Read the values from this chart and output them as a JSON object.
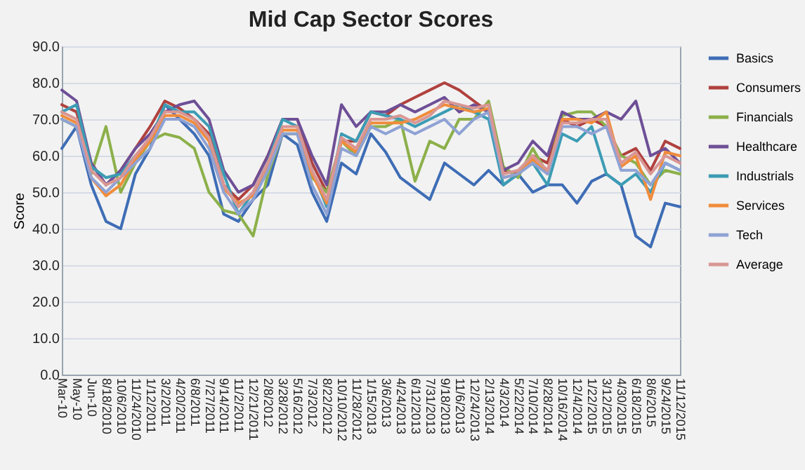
{
  "chart_data": {
    "type": "line",
    "title": "Mid Cap Sector Scores",
    "ylabel": "Score",
    "categories": [
      "Mar-10",
      "May-10",
      "Jun-10",
      "8/18/2010",
      "10/6/2010",
      "11/24/2010",
      "1/12/2011",
      "3/2/2011",
      "4/20/2011",
      "6/8/2011",
      "7/27/2011",
      "9/14/2011",
      "11/2/2011",
      "12/21/2011",
      "2/8/2012",
      "3/28/2012",
      "5/16/2012",
      "7/3/2012",
      "8/22/2012",
      "10/10/2012",
      "11/28/2012",
      "1/15/2013",
      "3/6/2013",
      "4/24/2013",
      "6/12/2013",
      "7/31/2013",
      "9/18/2013",
      "11/6/2013",
      "12/24/2013",
      "2/13/2014",
      "4/3/2014",
      "5/22/2014",
      "7/10/2014",
      "8/28/2014",
      "10/16/2014",
      "12/4/2014",
      "1/22/2015",
      "3/12/2015",
      "4/30/2015",
      "6/18/2015",
      "8/6/2015",
      "9/24/2015",
      "11/12/2015"
    ],
    "series": [
      {
        "name": "Basics",
        "color": "#3e6db5",
        "values": [
          62,
          68,
          52,
          42,
          40,
          55,
          62,
          74,
          70,
          66,
          60,
          44,
          42,
          48,
          52,
          66,
          63,
          50,
          42,
          58,
          55,
          66,
          61,
          54,
          51,
          48,
          58,
          55,
          52,
          56,
          52,
          55,
          50,
          52,
          52,
          47,
          53,
          55,
          52,
          38,
          35,
          47,
          46
        ]
      },
      {
        "name": "Consumers",
        "color": "#b0413e",
        "values": [
          74,
          72,
          58,
          52,
          56,
          62,
          68,
          75,
          73,
          70,
          66,
          52,
          48,
          52,
          60,
          70,
          70,
          58,
          50,
          64,
          64,
          72,
          71,
          74,
          76,
          78,
          80,
          78,
          75,
          72,
          56,
          55,
          60,
          58,
          70,
          68,
          70,
          68,
          60,
          62,
          56,
          64,
          62
        ]
      },
      {
        "name": "Financials",
        "color": "#8cb04a",
        "values": [
          70,
          68,
          55,
          68,
          50,
          58,
          64,
          66,
          65,
          62,
          50,
          45,
          44,
          38,
          55,
          66,
          66,
          54,
          50,
          64,
          60,
          68,
          68,
          70,
          53,
          64,
          62,
          70,
          70,
          75,
          57,
          54,
          62,
          55,
          71,
          72,
          72,
          68,
          60,
          58,
          52,
          56,
          55
        ]
      },
      {
        "name": "Healthcare",
        "color": "#6e4f96",
        "values": [
          78,
          75,
          58,
          52,
          56,
          62,
          66,
          72,
          74,
          75,
          70,
          56,
          50,
          52,
          60,
          70,
          70,
          60,
          52,
          74,
          68,
          72,
          72,
          74,
          72,
          74,
          76,
          72,
          74,
          72,
          56,
          58,
          64,
          60,
          72,
          70,
          70,
          72,
          70,
          75,
          60,
          62,
          58
        ]
      },
      {
        "name": "Industrials",
        "color": "#3c9cb4",
        "values": [
          72,
          74,
          57,
          54,
          55,
          60,
          64,
          74,
          72,
          72,
          68,
          55,
          44,
          50,
          58,
          70,
          68,
          56,
          46,
          66,
          64,
          72,
          71,
          70,
          68,
          70,
          72,
          74,
          72,
          70,
          52,
          55,
          58,
          52,
          66,
          64,
          68,
          55,
          52,
          55,
          50,
          58,
          56
        ]
      },
      {
        "name": "Services",
        "color": "#f08c3c",
        "values": [
          71,
          69,
          54,
          49,
          52,
          59,
          64,
          71,
          71,
          69,
          64,
          51,
          47,
          49,
          57,
          67,
          67,
          55,
          47,
          64,
          61,
          69,
          69,
          69,
          70,
          72,
          74,
          73,
          72,
          73,
          54,
          55,
          59,
          55,
          70,
          70,
          69,
          72,
          57,
          60,
          48,
          61,
          60
        ]
      },
      {
        "name": "Tech",
        "color": "#8fa2d4",
        "values": [
          70,
          68,
          54,
          50,
          54,
          58,
          62,
          70,
          70,
          68,
          62,
          50,
          44,
          48,
          56,
          66,
          66,
          52,
          44,
          62,
          60,
          68,
          66,
          68,
          66,
          68,
          70,
          66,
          70,
          72,
          54,
          55,
          58,
          55,
          68,
          68,
          66,
          68,
          56,
          56,
          52,
          58,
          56
        ]
      },
      {
        "name": "Average",
        "color": "#d99694",
        "values": [
          72,
          70,
          56,
          52,
          54,
          60,
          65,
          72,
          72,
          70,
          65,
          52,
          46,
          50,
          58,
          68,
          68,
          56,
          48,
          65,
          62,
          70,
          70,
          71,
          69,
          71,
          75,
          74,
          73,
          74,
          55,
          56,
          60,
          56,
          69,
          69,
          70,
          70,
          58,
          61,
          55,
          60,
          58
        ]
      }
    ],
    "ylim": [
      0,
      90
    ],
    "yticks": [
      {
        "value": 0,
        "label": "0.0"
      },
      {
        "value": 10,
        "label": "10.0"
      },
      {
        "value": 20,
        "label": "20.0"
      },
      {
        "value": 30,
        "label": "30.0"
      },
      {
        "value": 40,
        "label": "40.0"
      },
      {
        "value": 50,
        "label": "50.0"
      },
      {
        "value": 60,
        "label": "60.0"
      },
      {
        "value": 70,
        "label": "70.0"
      },
      {
        "value": 80,
        "label": "80.0"
      },
      {
        "value": 90,
        "label": "90.0"
      }
    ],
    "grid": "y",
    "legend": "right"
  }
}
